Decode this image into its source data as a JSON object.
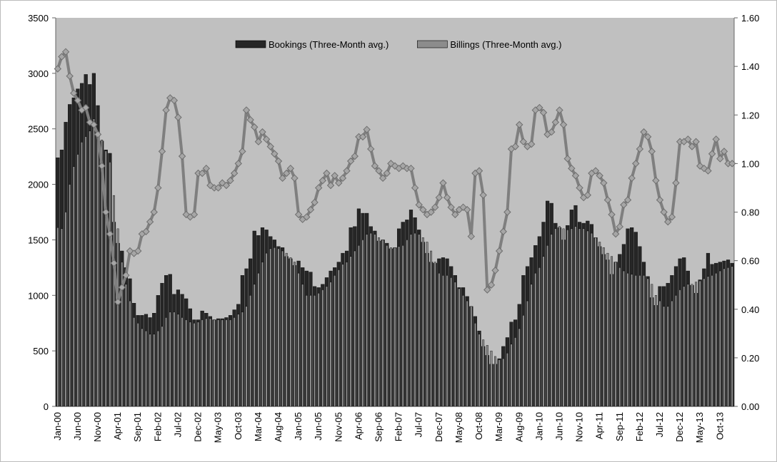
{
  "chart_data": {
    "type": "bar-line",
    "categories": [
      "Jan-00",
      null,
      null,
      null,
      null,
      "Jun-00",
      null,
      null,
      null,
      null,
      "Nov-00",
      null,
      null,
      null,
      null,
      "Apr-01",
      null,
      null,
      null,
      null,
      "Sep-01",
      null,
      null,
      null,
      null,
      "Feb-02",
      null,
      null,
      null,
      null,
      "Jul-02",
      null,
      null,
      null,
      null,
      "Dec-02",
      null,
      null,
      null,
      null,
      "May-03",
      null,
      null,
      null,
      null,
      "Oct-03",
      null,
      null,
      null,
      null,
      "Mar-04",
      null,
      null,
      null,
      null,
      "Aug-04",
      null,
      null,
      null,
      null,
      "Jan-05",
      null,
      null,
      null,
      null,
      "Jun-05",
      null,
      null,
      null,
      null,
      "Nov-05",
      null,
      null,
      null,
      null,
      "Apr-06",
      null,
      null,
      null,
      null,
      "Sep-06",
      null,
      null,
      null,
      null,
      "Feb-07",
      null,
      null,
      null,
      null,
      "Jul-07",
      null,
      null,
      null,
      null,
      "Dec-07",
      null,
      null,
      null,
      null,
      "May-08",
      null,
      null,
      null,
      null,
      "Oct-08",
      null,
      null,
      null,
      null,
      "Mar-09",
      null,
      null,
      null,
      null,
      "Aug-09",
      null,
      null,
      null,
      null,
      "Jan-10",
      null,
      null,
      null,
      null,
      "Jun-10",
      null,
      null,
      null,
      null,
      "Nov-10",
      null,
      null,
      null,
      null,
      "Apr-11",
      null,
      null,
      null,
      null,
      "Sep-11",
      null,
      null,
      null,
      null,
      "Feb-12",
      null,
      null,
      null,
      null,
      "Jul-12",
      null,
      null,
      null,
      null,
      "Dec-12",
      null,
      null,
      null,
      null,
      "May-13",
      null,
      null,
      null,
      null,
      "Oct-13",
      null,
      null,
      null
    ],
    "series": [
      {
        "name": "Bookings (Three-Month avg.)",
        "color": "#262626",
        "type": "bar",
        "values": [
          2240,
          2310,
          2560,
          2720,
          2780,
          2860,
          2910,
          2990,
          2900,
          3000,
          2710,
          2390,
          2310,
          2280,
          1660,
          1470,
          1400,
          1250,
          1150,
          930,
          820,
          820,
          830,
          800,
          840,
          1000,
          1110,
          1180,
          1190,
          1010,
          1050,
          1010,
          970,
          880,
          780,
          780,
          860,
          840,
          810,
          780,
          790,
          790,
          800,
          820,
          870,
          920,
          1180,
          1240,
          1330,
          1580,
          1540,
          1610,
          1590,
          1530,
          1500,
          1440,
          1430,
          1350,
          1330,
          1270,
          1310,
          1250,
          1220,
          1210,
          1080,
          1070,
          1100,
          1160,
          1220,
          1250,
          1300,
          1380,
          1400,
          1610,
          1620,
          1780,
          1740,
          1740,
          1620,
          1580,
          1490,
          1500,
          1470,
          1420,
          1430,
          1600,
          1660,
          1680,
          1770,
          1700,
          1590,
          1480,
          1380,
          1300,
          1290,
          1330,
          1340,
          1330,
          1260,
          1180,
          1070,
          1070,
          990,
          900,
          810,
          680,
          540,
          460,
          380,
          380,
          430,
          540,
          620,
          760,
          780,
          920,
          1180,
          1260,
          1340,
          1450,
          1530,
          1660,
          1850,
          1830,
          1650,
          1610,
          1500,
          1630,
          1770,
          1810,
          1660,
          1650,
          1670,
          1640,
          1520,
          1440,
          1370,
          1320,
          1190,
          1300,
          1370,
          1460,
          1600,
          1610,
          1570,
          1440,
          1300,
          1170,
          980,
          910,
          1080,
          1080,
          1110,
          1180,
          1260,
          1330,
          1340,
          1220,
          1090,
          1020,
          1140,
          1240,
          1380,
          1280,
          1290,
          1300,
          1310,
          1320,
          1290
        ]
      },
      {
        "name": "Billings (Three-Month avg.)",
        "color": "#8c8c8c",
        "type": "bar",
        "values": [
          1610,
          1600,
          1750,
          2000,
          2160,
          2270,
          2380,
          2430,
          2480,
          2590,
          2420,
          2400,
          2300,
          2200,
          1900,
          1600,
          1300,
          1100,
          950,
          800,
          750,
          700,
          680,
          650,
          650,
          680,
          720,
          800,
          850,
          850,
          830,
          800,
          780,
          760,
          750,
          760,
          780,
          790,
          790,
          780,
          780,
          780,
          780,
          780,
          800,
          830,
          850,
          900,
          1000,
          1100,
          1200,
          1300,
          1380,
          1420,
          1430,
          1420,
          1400,
          1380,
          1340,
          1300,
          1200,
          1100,
          1000,
          1000,
          1000,
          1020,
          1050,
          1080,
          1120,
          1180,
          1230,
          1280,
          1300,
          1350,
          1400,
          1450,
          1500,
          1550,
          1560,
          1550,
          1520,
          1500,
          1450,
          1430,
          1430,
          1440,
          1450,
          1500,
          1550,
          1560,
          1550,
          1520,
          1480,
          1400,
          1300,
          1200,
          1180,
          1180,
          1160,
          1120,
          1060,
          1000,
          950,
          900,
          750,
          650,
          600,
          550,
          500,
          450,
          420,
          430,
          480,
          560,
          620,
          700,
          820,
          950,
          1100,
          1200,
          1250,
          1350,
          1450,
          1550,
          1600,
          1620,
          1600,
          1590,
          1600,
          1620,
          1600,
          1600,
          1580,
          1560,
          1520,
          1480,
          1430,
          1380,
          1350,
          1300,
          1250,
          1220,
          1200,
          1190,
          1180,
          1180,
          1180,
          1150,
          1100,
          1000,
          950,
          900,
          900,
          950,
          1000,
          1050,
          1080,
          1100,
          1100,
          1120,
          1130,
          1150,
          1170,
          1180,
          1200,
          1220,
          1240,
          1250,
          1260
        ]
      },
      {
        "color": "#7f7f7f",
        "type": "line",
        "axis": "y2",
        "values": [
          1.39,
          1.44,
          1.46,
          1.36,
          1.29,
          1.26,
          1.22,
          1.23,
          1.17,
          1.16,
          1.12,
          0.99,
          0.8,
          0.71,
          0.59,
          0.43,
          0.49,
          0.54,
          0.64,
          0.63,
          0.64,
          0.71,
          0.72,
          0.76,
          0.8,
          0.9,
          1.05,
          1.22,
          1.27,
          1.26,
          1.19,
          1.03,
          0.79,
          0.78,
          0.79,
          0.96,
          0.96,
          0.98,
          0.91,
          0.9,
          0.9,
          0.92,
          0.91,
          0.93,
          0.96,
          1.0,
          1.05,
          1.22,
          1.18,
          1.15,
          1.09,
          1.13,
          1.1,
          1.07,
          1.04,
          1.01,
          0.94,
          0.96,
          0.98,
          0.94,
          0.79,
          0.77,
          0.78,
          0.81,
          0.84,
          0.9,
          0.93,
          0.96,
          0.91,
          0.95,
          0.92,
          0.94,
          0.97,
          1.01,
          1.03,
          1.11,
          1.11,
          1.14,
          1.06,
          0.99,
          0.97,
          0.94,
          0.96,
          1.0,
          0.99,
          0.98,
          0.99,
          0.98,
          0.98,
          0.9,
          0.83,
          0.81,
          0.79,
          0.8,
          0.82,
          0.86,
          0.92,
          0.86,
          0.82,
          0.79,
          0.81,
          0.82,
          0.81,
          0.7,
          0.96,
          0.97,
          0.87,
          0.48,
          0.5,
          0.56,
          0.64,
          0.72,
          0.8,
          1.06,
          1.07,
          1.16,
          1.09,
          1.07,
          1.08,
          1.22,
          1.23,
          1.21,
          1.12,
          1.13,
          1.17,
          1.22,
          1.16,
          1.02,
          0.98,
          0.95,
          0.9,
          0.86,
          0.87,
          0.96,
          0.97,
          0.95,
          0.92,
          0.85,
          0.79,
          0.71,
          0.74,
          0.83,
          0.85,
          0.94,
          1.0,
          1.06,
          1.13,
          1.11,
          1.05,
          0.93,
          0.85,
          0.8,
          0.76,
          0.78,
          0.92,
          1.09,
          1.09,
          1.1,
          1.07,
          1.09,
          0.99,
          0.98,
          0.97,
          1.04,
          1.1,
          1.02,
          1.05,
          1.0,
          1.0
        ]
      }
    ],
    "ylim": [
      0,
      3500
    ],
    "yticks": [
      0,
      500,
      1000,
      1500,
      2000,
      2500,
      3000,
      3500
    ],
    "y2lim": [
      0,
      1.6
    ],
    "y2ticks": [
      {
        "value": 0,
        "label": "0.00"
      },
      {
        "value": 0.2,
        "label": "0.20"
      },
      {
        "value": 0.4,
        "label": "0.40"
      },
      {
        "value": 0.6,
        "label": "0.60"
      },
      {
        "value": 0.8,
        "label": "0.80"
      },
      {
        "value": 1.0,
        "label": "1.00"
      },
      {
        "value": 1.2,
        "label": "1.20"
      },
      {
        "value": 1.4,
        "label": "1.40"
      },
      {
        "value": 1.6,
        "label": "1.60"
      }
    ],
    "legend": "top",
    "grid": false
  }
}
